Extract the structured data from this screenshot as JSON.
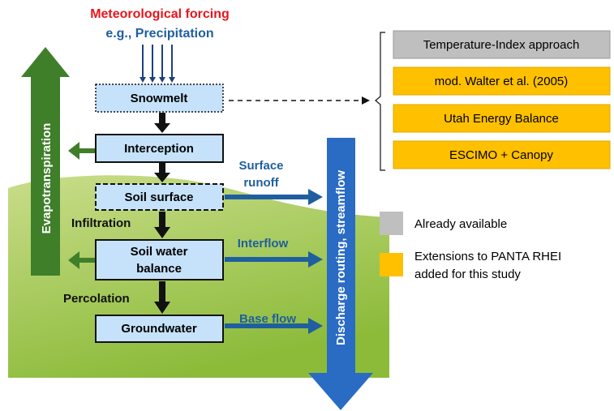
{
  "forcing": {
    "title": "Meteorological forcing",
    "subtitle": "e.g., Precipitation"
  },
  "nodes": [
    {
      "label": [
        "Snowmelt"
      ]
    },
    {
      "label": [
        "Interception"
      ]
    },
    {
      "label": [
        "Soil surface"
      ]
    },
    {
      "label": [
        "Soil water",
        "balance"
      ]
    },
    {
      "label": [
        "Groundwater"
      ]
    }
  ],
  "processes": {
    "infiltration": "Infiltration",
    "percolation": "Percolation"
  },
  "flows": {
    "surface_runoff": [
      "Surface",
      "runoff"
    ],
    "interflow": "Interflow",
    "base_flow": "Base flow",
    "evapotranspiration": "Evapotranspiration",
    "discharge": "Discharge routing, streamflow"
  },
  "options": [
    "Temperature-Index approach",
    "mod. Walter et al. (2005)",
    "Utah Energy Balance",
    "ESCIMO + Canopy"
  ],
  "legend": {
    "available": "Already available",
    "extensions": [
      "Extensions to PANTA RHEI",
      "added for this study"
    ]
  }
}
